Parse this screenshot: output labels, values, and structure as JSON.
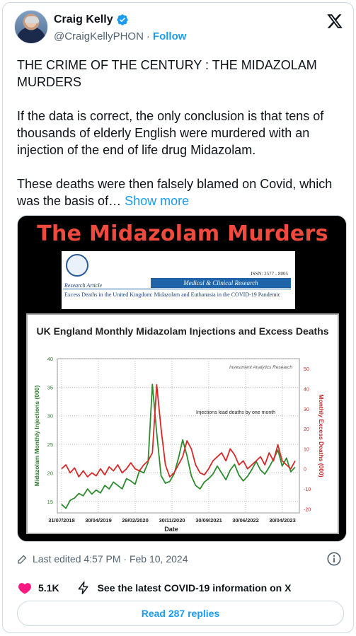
{
  "author": {
    "name": "Craig Kelly",
    "handle": "@CraigKellyPHON",
    "separator": "·",
    "follow_label": "Follow"
  },
  "tweet": {
    "paragraph1": "THE CRIME OF THE CENTURY : THE MIDAZOLAM MURDERS",
    "paragraph2": "If the data is correct, the only conclusion is that tens of thousands of elderly English were murdered with an injection of the end of life drug Midazolam.",
    "paragraph3": "These deaths were then falsely blamed on Covid, which was the basis of…",
    "show_more": "Show more"
  },
  "media": {
    "headline": "The Midazolam Murders",
    "journal": {
      "issn": "ISSN: 2577 - 8005",
      "article_type": "Research Article",
      "banner": "Medical & Clinical Research",
      "article_title": "Excess Deaths in the United Kingdom: Midazolam and Euthanasia in the COVID-19 Pandemic"
    }
  },
  "chart_data": {
    "type": "line",
    "title": "UK England Monthly Midazolam Injections and Excess Deaths",
    "subtitle": "Investment Analytics Research",
    "annotation": "Injections lead deaths by one month",
    "xlabel": "Date",
    "ylabel_left": "Midazolam Monthly Injections (000)",
    "ylabel_right": "Monthly Excess Deaths (000)",
    "x_tick_labels": [
      "31/07/2018",
      "30/04/2019",
      "29/02/2020",
      "30/11/2020",
      "30/09/2021",
      "30/06/2022",
      "30/04/2023"
    ],
    "y_left_ticks": [
      15,
      20,
      25,
      30,
      35,
      40
    ],
    "y_right_ticks": [
      -20,
      -10,
      0,
      10,
      20,
      30,
      40,
      50
    ],
    "ylim_left": [
      13,
      40
    ],
    "ylim_right": [
      -22,
      55
    ],
    "grid": true,
    "series": [
      {
        "name": "Midazolam Monthly Injections (000)",
        "axis": "left",
        "color": "#2e8b2e",
        "values": [
          14.5,
          13.8,
          15.2,
          15.6,
          16.4,
          16.0,
          17.2,
          16.3,
          17.0,
          16.5,
          17.8,
          17.2,
          18.4,
          17.8,
          17.2,
          19.0,
          18.6,
          18.0,
          20.4,
          20.0,
          21.8,
          35.5,
          27.0,
          19.5,
          18.2,
          18.5,
          19.8,
          22.5,
          25.8,
          23.0,
          19.5,
          17.8,
          17.2,
          18.4,
          19.0,
          19.8,
          21.2,
          20.0,
          18.8,
          20.5,
          21.5,
          19.6,
          18.6,
          19.4,
          20.6,
          22.0,
          20.5,
          19.8,
          21.0,
          22.4,
          24.0,
          21.2,
          22.6,
          20.2,
          21.0
        ]
      },
      {
        "name": "Monthly Excess Deaths (000)",
        "axis": "right",
        "color": "#d62a2a",
        "values": [
          0.0,
          2.0,
          -2.0,
          0.5,
          -4.0,
          -1.0,
          -4.0,
          -2.0,
          -3.5,
          0.0,
          -3.0,
          1.0,
          -1.0,
          2.0,
          -2.0,
          0.0,
          3.0,
          0.0,
          -1.0,
          2.0,
          4.0,
          8.0,
          42.0,
          20.0,
          2.0,
          -4.0,
          -2.0,
          2.0,
          6.0,
          14.0,
          10.0,
          2.0,
          -2.0,
          -3.0,
          0.0,
          4.0,
          6.0,
          8.0,
          4.0,
          10.0,
          7.0,
          2.0,
          4.0,
          0.0,
          2.0,
          4.0,
          6.0,
          2.0,
          8.0,
          4.0,
          12.0,
          4.0,
          2.0,
          0.0,
          4.0
        ]
      }
    ]
  },
  "footer": {
    "edited": "Last edited 4:57 PM · Feb 10, 2024",
    "likes": "5.1K",
    "covid_label": "See the latest COVID-19 information on X",
    "replies_button": "Read 287 replies"
  },
  "colors": {
    "accent": "#1d9bf0",
    "like": "#f91880",
    "headline": "#f04a3e"
  }
}
